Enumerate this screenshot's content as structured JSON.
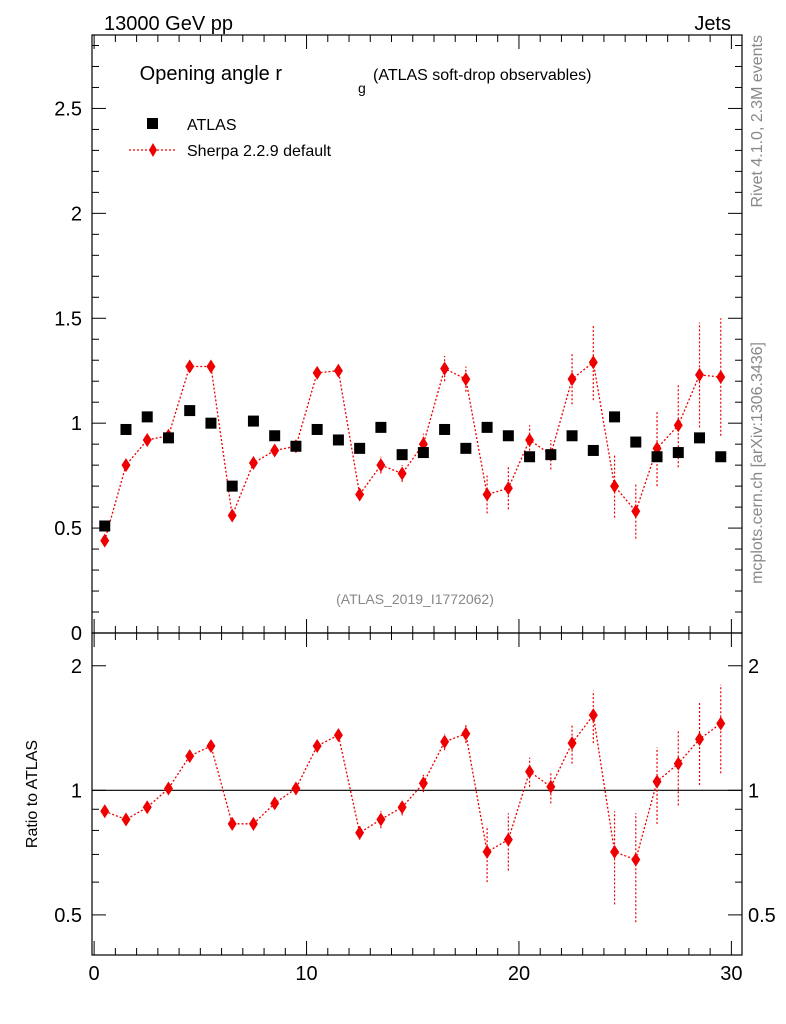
{
  "header": {
    "left": "13000 GeV pp",
    "right": "Jets"
  },
  "side_labels": {
    "rivet": "Rivet 4.1.0,  2.3M events",
    "mcplots": "mcplots.cern.ch [arXiv:1306.3436]"
  },
  "colors": {
    "data": "#000000",
    "mc": "#ee0000",
    "grey_text": "#888888"
  },
  "chart_data": [
    {
      "type": "scatter",
      "title": "Opening angle r",
      "title_subscript": "g",
      "subtitle": "(ATLAS soft-drop observables)",
      "watermark": "(ATLAS_2019_I1772062)",
      "xlabel": "",
      "ylabel": "",
      "xlim": [
        -0.1,
        30.5
      ],
      "ylim": [
        0,
        2.85
      ],
      "yticks": [
        0,
        0.5,
        1,
        1.5,
        2,
        2.5
      ],
      "ytick_labels": [
        "0",
        "0.5",
        "1",
        "1.5",
        "2",
        "2.5"
      ],
      "legend": {
        "placement": "top-left",
        "entries": [
          "ATLAS",
          "Sherpa 2.2.9 default"
        ]
      },
      "series": [
        {
          "name": "ATLAS",
          "marker": "square",
          "x": [
            0.5,
            1.5,
            2.5,
            3.5,
            4.5,
            5.5,
            6.5,
            7.5,
            8.5,
            9.5,
            10.5,
            11.5,
            12.5,
            13.5,
            14.5,
            15.5,
            16.5,
            17.5,
            18.5,
            19.5,
            20.5,
            21.5,
            22.5,
            23.5,
            24.5,
            25.5,
            26.5,
            27.5,
            28.5,
            29.5
          ],
          "values": [
            0.51,
            0.97,
            1.03,
            0.93,
            1.06,
            1.0,
            0.7,
            1.01,
            0.94,
            0.89,
            0.97,
            0.92,
            0.88,
            0.98,
            0.85,
            0.86,
            0.97,
            0.88,
            0.98,
            0.94,
            0.84,
            0.85,
            0.94,
            0.87,
            1.03,
            0.91,
            0.84,
            0.86,
            0.93,
            0.84
          ]
        },
        {
          "name": "Sherpa 2.2.9 default",
          "marker": "diamond",
          "line": "dotted",
          "x": [
            0.5,
            1.5,
            2.5,
            3.5,
            4.5,
            5.5,
            6.5,
            7.5,
            8.5,
            9.5,
            10.5,
            11.5,
            12.5,
            13.5,
            14.5,
            15.5,
            16.5,
            17.5,
            18.5,
            19.5,
            20.5,
            21.5,
            22.5,
            23.5,
            24.5,
            25.5,
            26.5,
            27.5,
            28.5,
            29.5
          ],
          "values": [
            0.44,
            0.8,
            0.92,
            0.94,
            1.27,
            1.27,
            0.56,
            0.81,
            0.87,
            0.89,
            1.24,
            1.25,
            0.66,
            0.8,
            0.76,
            0.9,
            1.26,
            1.21,
            0.66,
            0.69,
            0.92,
            0.85,
            1.21,
            1.29,
            0.7,
            0.58,
            0.88,
            0.99,
            1.23,
            1.22
          ],
          "errors": [
            0.01,
            0.01,
            0.01,
            0.01,
            0.01,
            0.01,
            0.02,
            0.01,
            0.01,
            0.01,
            0.02,
            0.03,
            0.03,
            0.04,
            0.04,
            0.05,
            0.06,
            0.06,
            0.09,
            0.1,
            0.07,
            0.07,
            0.12,
            0.18,
            0.15,
            0.13,
            0.18,
            0.2,
            0.25,
            0.28
          ]
        }
      ]
    },
    {
      "type": "scatter",
      "title": "",
      "xlabel": "",
      "ylabel": "Ratio to ATLAS",
      "scale": "log",
      "xlim": [
        -0.1,
        30.5
      ],
      "ylim": [
        0.4,
        2.4
      ],
      "xticks": [
        0,
        10,
        20,
        30
      ],
      "xtick_labels": [
        "0",
        "10",
        "20",
        "30"
      ],
      "yticks": [
        0.5,
        1,
        2
      ],
      "ytick_labels": [
        "0.5",
        "1",
        "2"
      ],
      "reference_line": 1,
      "series": [
        {
          "name": "Sherpa 2.2.9 default / ATLAS",
          "marker": "diamond",
          "line": "dotted",
          "x": [
            0.5,
            1.5,
            2.5,
            3.5,
            4.5,
            5.5,
            6.5,
            7.5,
            8.5,
            9.5,
            10.5,
            11.5,
            12.5,
            13.5,
            14.5,
            15.5,
            16.5,
            17.5,
            18.5,
            19.5,
            20.5,
            21.5,
            22.5,
            23.5,
            24.5,
            25.5,
            26.5,
            27.5,
            28.5,
            29.5
          ],
          "values": [
            0.89,
            0.85,
            0.91,
            1.01,
            1.21,
            1.28,
            0.83,
            0.83,
            0.93,
            1.01,
            1.28,
            1.36,
            0.79,
            0.85,
            0.91,
            1.04,
            1.31,
            1.37,
            0.71,
            0.76,
            1.11,
            1.02,
            1.3,
            1.52,
            0.71,
            0.68,
            1.05,
            1.16,
            1.33,
            1.45
          ],
          "errors": [
            0.01,
            0.01,
            0.01,
            0.01,
            0.01,
            0.01,
            0.02,
            0.01,
            0.01,
            0.01,
            0.02,
            0.03,
            0.03,
            0.04,
            0.04,
            0.05,
            0.06,
            0.07,
            0.11,
            0.12,
            0.09,
            0.09,
            0.14,
            0.22,
            0.18,
            0.2,
            0.22,
            0.24,
            0.3,
            0.35
          ]
        }
      ]
    }
  ]
}
